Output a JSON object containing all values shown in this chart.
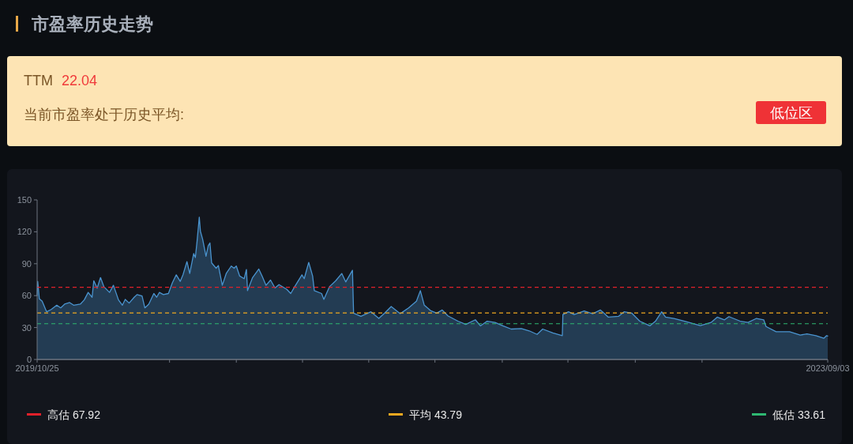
{
  "chart_data": {
    "type": "area",
    "title": "市盈率历史走势",
    "annotations": [
      "TTM",
      "22.04",
      "当前市盈率处于历史平均:",
      "低位区"
    ],
    "x": [
      "2019-10-25",
      "2019-10-26",
      "2019-10-29",
      "2019-11-03",
      "2019-11-08",
      "2019-11-11",
      "2019-11-19",
      "2019-11-29",
      "2019-12-06",
      "2019-12-13",
      "2019-12-22",
      "2019-12-29",
      "2020-01-10",
      "2020-01-17",
      "2020-01-24",
      "2020-01-31",
      "2020-02-03",
      "2020-02-09",
      "2020-02-15",
      "2020-02-21",
      "2020-03-02",
      "2020-03-09",
      "2020-03-18",
      "2020-03-25",
      "2020-03-30",
      "2020-04-06",
      "2020-04-15",
      "2020-04-20",
      "2020-04-29",
      "2020-05-04",
      "2020-05-11",
      "2020-05-20",
      "2020-05-25",
      "2020-05-30",
      "2020-06-06",
      "2020-06-15",
      "2020-06-22",
      "2020-06-29",
      "2020-07-06",
      "2020-07-11",
      "2020-07-18",
      "2020-07-23",
      "2020-07-30",
      "2020-08-02",
      "2020-08-05",
      "2020-08-09",
      "2020-08-11",
      "2020-08-15",
      "2020-08-21",
      "2020-08-25",
      "2020-08-28",
      "2020-08-31",
      "2020-09-08",
      "2020-09-12",
      "2020-09-19",
      "2020-09-26",
      "2020-10-05",
      "2020-10-10",
      "2020-10-14",
      "2020-10-20",
      "2020-10-28",
      "2020-11-01",
      "2020-11-03",
      "2020-11-12",
      "2020-11-23",
      "2020-11-29",
      "2020-12-06",
      "2020-12-14",
      "2020-12-22",
      "2020-12-29",
      "2021-01-12",
      "2021-01-19",
      "2021-01-26",
      "2021-02-08",
      "2021-02-12",
      "2021-02-20",
      "2021-02-27",
      "2021-03-02",
      "2021-03-15",
      "2021-03-19",
      "2021-03-29",
      "2021-04-09",
      "2021-04-20",
      "2021-04-27",
      "2021-05-09",
      "2021-05-11",
      "2021-05-24",
      "2021-06-11",
      "2021-06-25",
      "2021-07-05",
      "2021-07-17",
      "2021-08-02",
      "2021-08-17",
      "2021-08-31",
      "2021-09-07",
      "2021-09-14",
      "2021-09-25",
      "2021-10-06",
      "2021-10-16",
      "2021-10-26",
      "2021-11-13",
      "2021-11-27",
      "2021-12-14",
      "2021-12-23",
      "2022-01-04",
      "2022-01-18",
      "2022-02-01",
      "2022-02-16",
      "2022-03-06",
      "2022-03-20",
      "2022-04-03",
      "2022-04-13",
      "2022-05-01",
      "2022-05-18",
      "2022-05-19",
      "2022-05-29",
      "2022-06-08",
      "2022-06-26",
      "2022-07-11",
      "2022-07-25",
      "2022-08-08",
      "2022-08-26",
      "2022-09-05",
      "2022-09-19",
      "2022-10-03",
      "2022-10-21",
      "2022-10-31",
      "2022-11-11",
      "2022-11-18",
      "2022-12-03",
      "2022-12-22",
      "2023-01-19",
      "2023-02-07",
      "2023-02-18",
      "2023-03-03",
      "2023-03-11",
      "2023-03-31",
      "2023-04-14",
      "2023-04-29",
      "2023-05-12",
      "2023-05-16",
      "2023-06-03",
      "2023-06-27",
      "2023-07-16",
      "2023-07-28",
      "2023-08-13",
      "2023-08-27",
      "2023-09-01",
      "2023-09-03"
    ],
    "series": [
      {
        "color": "#4a94cf",
        "values": [
          60,
          73.4,
          57,
          54.7,
          48.5,
          44.8,
          47,
          51,
          48.5,
          52,
          53.5,
          51,
          52,
          56,
          63,
          58.5,
          74,
          67,
          77,
          68.4,
          63,
          69.7,
          56,
          51,
          56.5,
          53,
          58.5,
          61,
          59.7,
          48.5,
          52,
          62,
          58.5,
          63,
          61,
          62,
          72,
          79.6,
          73.4,
          79.6,
          92,
          80.8,
          99.5,
          95.8,
          110.7,
          133.8,
          120.6,
          113,
          97,
          107,
          109.5,
          90.8,
          85.8,
          88.3,
          69.7,
          80.8,
          87.8,
          85.8,
          87.8,
          78.4,
          75.9,
          84.6,
          64.7,
          77,
          85,
          78.4,
          69.7,
          74.6,
          67.2,
          70.4,
          65.9,
          62,
          68.4,
          79.6,
          75.9,
          91.3,
          78.4,
          64.7,
          62,
          56.5,
          68.4,
          73.9,
          80.8,
          72.9,
          83.8,
          43.5,
          40.5,
          44.8,
          38.6,
          43.5,
          49.8,
          43,
          48.5,
          54.7,
          64.7,
          51,
          46,
          43.5,
          46.5,
          41,
          36,
          33,
          37.3,
          31.6,
          36,
          34.8,
          31.6,
          28.6,
          29.1,
          26.9,
          23.6,
          28.6,
          24.9,
          22.4,
          42.3,
          44.8,
          42.3,
          45.5,
          43,
          46.5,
          39.8,
          40.5,
          44.8,
          43.5,
          36,
          31.6,
          36,
          44.8,
          39.8,
          38.6,
          36,
          31.8,
          34.8,
          39.8,
          37.3,
          40.3,
          36,
          34.8,
          38.6,
          37.3,
          31,
          26.1,
          26.1,
          22.9,
          24.1,
          22.4,
          19.9,
          22.4,
          22
        ]
      }
    ],
    "xlim": [
      "2019-10-25",
      "2023-09-03"
    ],
    "xticks": [
      {
        "value": "2019-10-25",
        "label": "2019/10/25"
      },
      {
        "value": "2020-06-17",
        "label": null
      },
      {
        "value": "2020-10-14",
        "label": null
      },
      {
        "value": "2021-02-09",
        "label": null
      },
      {
        "value": "2021-06-07",
        "label": null
      },
      {
        "value": "2021-10-03",
        "label": null
      },
      {
        "value": "2022-01-31",
        "label": null
      },
      {
        "value": "2022-05-28",
        "label": null
      },
      {
        "value": "2022-09-25",
        "label": null
      },
      {
        "value": "2023-01-22",
        "label": null
      },
      {
        "value": "2023-09-03",
        "label": "2023/09/03"
      }
    ],
    "ylim": [
      0,
      150
    ],
    "yticks": [
      0,
      30,
      60,
      90,
      120,
      150
    ],
    "ref_lines": [
      {
        "axis": "y",
        "value": 67.92,
        "label": "高估 67.92",
        "color": "#e0202a",
        "line_style": "dashed"
      },
      {
        "axis": "y",
        "value": 43.79,
        "label": "平均 43.79",
        "color": "#f0a820",
        "line_style": "dashed"
      },
      {
        "axis": "y",
        "value": 33.61,
        "label": "低估 33.61",
        "color": "#2eb872",
        "line_style": "dashed"
      }
    ],
    "legend": "bottom",
    "grid": false,
    "line_style": "solid",
    "marker": "none"
  }
}
